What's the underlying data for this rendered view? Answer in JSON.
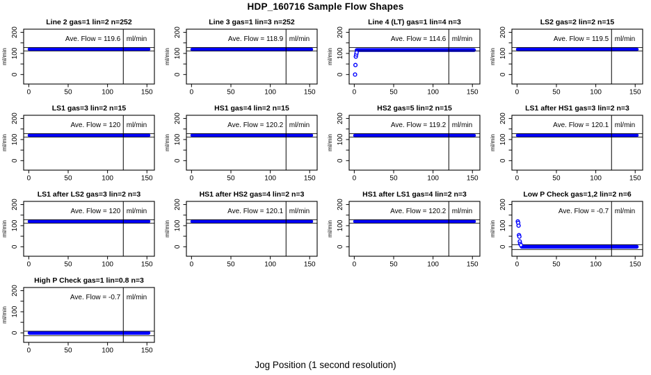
{
  "page": {
    "title": "HDP_160716  Sample Flow Shapes",
    "x_axis_caption": "Jog Position (1 second resolution)"
  },
  "chart_data": {
    "type": "scatter",
    "title": "HDP_160716  Sample Flow Shapes",
    "xlabel": "Jog Position (1 second resolution)",
    "ylabel": "ml/min",
    "layout": {
      "rows": 4,
      "cols": 4,
      "xlim": [
        -6.5,
        159.5
      ],
      "ylim": [
        -45,
        215
      ],
      "x_ticks": [
        0,
        50,
        100,
        150
      ],
      "y_ticks": [
        0,
        50,
        100,
        150,
        200
      ],
      "y_labeled_ticks": [
        0,
        100,
        200
      ],
      "vline_x": 120,
      "point_color": "#0000ff",
      "line_color": "#000000",
      "annotation_prefix": "Ave. Flow =",
      "annotation_unit": "ml/min"
    },
    "subplots": [
      {
        "id": "line2",
        "title": "Line 2 gas=1 lin=2 n=252",
        "ave_flow": "119.6",
        "band": {
          "x0": 1,
          "x1": 152,
          "y": 120
        },
        "ref_lines": [
          128,
          112
        ],
        "points": []
      },
      {
        "id": "line3",
        "title": "Line 3 gas=1 lin=3 n=252",
        "ave_flow": "118.9",
        "band": {
          "x0": 1,
          "x1": 152,
          "y": 119
        },
        "ref_lines": [
          128,
          112
        ],
        "points": []
      },
      {
        "id": "line4-lt",
        "title": "Line 4 (LT) gas=1 lin=4 n=3",
        "ave_flow": "114.6",
        "band": {
          "x0": 3,
          "x1": 152,
          "y": 116
        },
        "ref_lines": [
          128,
          112
        ],
        "points": [
          [
            1,
            0
          ],
          [
            1.5,
            45
          ],
          [
            2,
            85
          ],
          [
            2.5,
            95
          ],
          [
            3,
            104
          ]
        ]
      },
      {
        "id": "ls2",
        "title": "LS2 gas=2 lin=2 n=15",
        "ave_flow": "119.5",
        "band": {
          "x0": 1,
          "x1": 152,
          "y": 119
        },
        "ref_lines": [
          128,
          112
        ],
        "points": []
      },
      {
        "id": "ls1",
        "title": "LS1 gas=3 lin=2 n=15",
        "ave_flow": "120",
        "band": {
          "x0": 1,
          "x1": 152,
          "y": 120
        },
        "ref_lines": [
          128,
          112
        ],
        "points": []
      },
      {
        "id": "hs1",
        "title": "HS1 gas=4 lin=2 n=15",
        "ave_flow": "120.2",
        "band": {
          "x0": 1,
          "x1": 152,
          "y": 120
        },
        "ref_lines": [
          128,
          112
        ],
        "points": []
      },
      {
        "id": "hs2",
        "title": "HS2 gas=5 lin=2 n=15",
        "ave_flow": "119.2",
        "band": {
          "x0": 1,
          "x1": 152,
          "y": 119
        },
        "ref_lines": [
          128,
          112
        ],
        "points": []
      },
      {
        "id": "ls1-after-hs1",
        "title": "LS1 after HS1 gas=3 lin=2 n=3",
        "ave_flow": "120.1",
        "band": {
          "x0": 1,
          "x1": 152,
          "y": 120
        },
        "ref_lines": [
          128,
          112
        ],
        "points": []
      },
      {
        "id": "ls1-after-ls2",
        "title": "LS1 after LS2 gas=3 lin=2 n=3",
        "ave_flow": "120",
        "band": {
          "x0": 1,
          "x1": 152,
          "y": 120
        },
        "ref_lines": [
          128,
          112
        ],
        "points": []
      },
      {
        "id": "hs1-after-hs2",
        "title": "HS1 after HS2 gas=4 lin=2 n=3",
        "ave_flow": "120.1",
        "band": {
          "x0": 1,
          "x1": 152,
          "y": 120
        },
        "ref_lines": [
          128,
          112
        ],
        "points": []
      },
      {
        "id": "hs1-after-ls1",
        "title": "HS1 after LS1 gas=4 lin=2 n=3",
        "ave_flow": "120.2",
        "band": {
          "x0": 1,
          "x1": 152,
          "y": 120
        },
        "ref_lines": [
          128,
          112
        ],
        "points": []
      },
      {
        "id": "low-p-check",
        "title": "Low P Check gas=1,2 lin=2 n=6",
        "ave_flow": "-0.7",
        "band": {
          "x0": 6,
          "x1": 152,
          "y": 0
        },
        "ref_lines": [
          10,
          -13
        ],
        "points": [
          [
            1,
            120
          ],
          [
            1.5,
            113
          ],
          [
            2,
            100
          ],
          [
            2.5,
            55
          ],
          [
            3,
            48
          ],
          [
            3.5,
            25
          ],
          [
            4,
            14
          ],
          [
            5,
            8
          ]
        ]
      },
      {
        "id": "high-p-check",
        "title": "High P Check gas=1 lin=0.8 n=3",
        "ave_flow": "-0.7",
        "band": {
          "x0": 1,
          "x1": 152,
          "y": 0
        },
        "ref_lines": [
          8,
          -13
        ],
        "points": []
      }
    ]
  }
}
